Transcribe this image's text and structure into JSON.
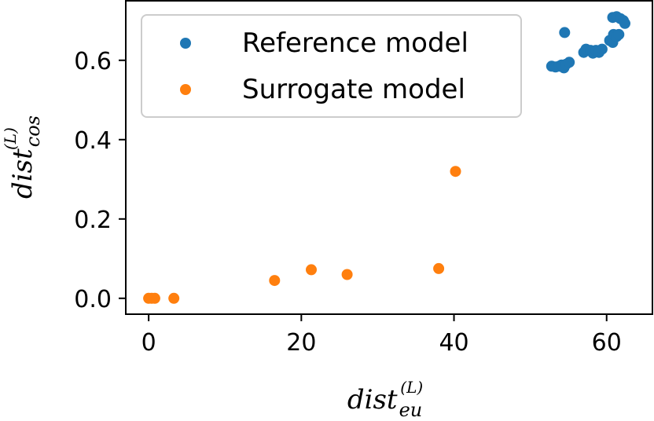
{
  "chart_data": {
    "type": "scatter",
    "title": "",
    "xlabel": {
      "main": "dist",
      "sub": "eu",
      "sup": "(L)"
    },
    "ylabel": {
      "main": "dist",
      "sub": "cos",
      "sup": "(L)"
    },
    "xlim": [
      -3,
      66
    ],
    "ylim": [
      -0.04,
      0.75
    ],
    "xticks": [
      0,
      20,
      40,
      60
    ],
    "xtick_labels": [
      "0",
      "20",
      "40",
      "60"
    ],
    "yticks": [
      0.0,
      0.2,
      0.4,
      0.6
    ],
    "ytick_labels": [
      "0.0",
      "0.2",
      "0.4",
      "0.6"
    ],
    "grid": false,
    "legend_position": "top-right",
    "series": [
      {
        "name": "Reference model",
        "color": "#1f77b4",
        "points": [
          [
            52.8,
            0.585
          ],
          [
            53.3,
            0.583
          ],
          [
            53.8,
            0.585
          ],
          [
            54.1,
            0.588
          ],
          [
            54.4,
            0.581
          ],
          [
            54.7,
            0.59
          ],
          [
            55.1,
            0.595
          ],
          [
            54.5,
            0.67
          ],
          [
            57.0,
            0.62
          ],
          [
            57.3,
            0.628
          ],
          [
            57.9,
            0.625
          ],
          [
            58.2,
            0.618
          ],
          [
            58.6,
            0.625
          ],
          [
            59.0,
            0.62
          ],
          [
            59.4,
            0.628
          ],
          [
            60.4,
            0.65
          ],
          [
            60.8,
            0.645
          ],
          [
            60.9,
            0.665
          ],
          [
            61.3,
            0.66
          ],
          [
            61.6,
            0.665
          ],
          [
            60.8,
            0.708
          ],
          [
            61.3,
            0.71
          ],
          [
            61.8,
            0.705
          ],
          [
            62.2,
            0.7
          ],
          [
            62.4,
            0.693
          ]
        ]
      },
      {
        "name": "Surrogate model",
        "color": "#ff7f0e",
        "points": [
          [
            0.0,
            0.0
          ],
          [
            0.4,
            0.0
          ],
          [
            0.8,
            0.0
          ],
          [
            3.3,
            0.0
          ],
          [
            16.5,
            0.045
          ],
          [
            21.3,
            0.072
          ],
          [
            26.0,
            0.06
          ],
          [
            38.0,
            0.075
          ],
          [
            40.2,
            0.32
          ]
        ]
      }
    ]
  }
}
